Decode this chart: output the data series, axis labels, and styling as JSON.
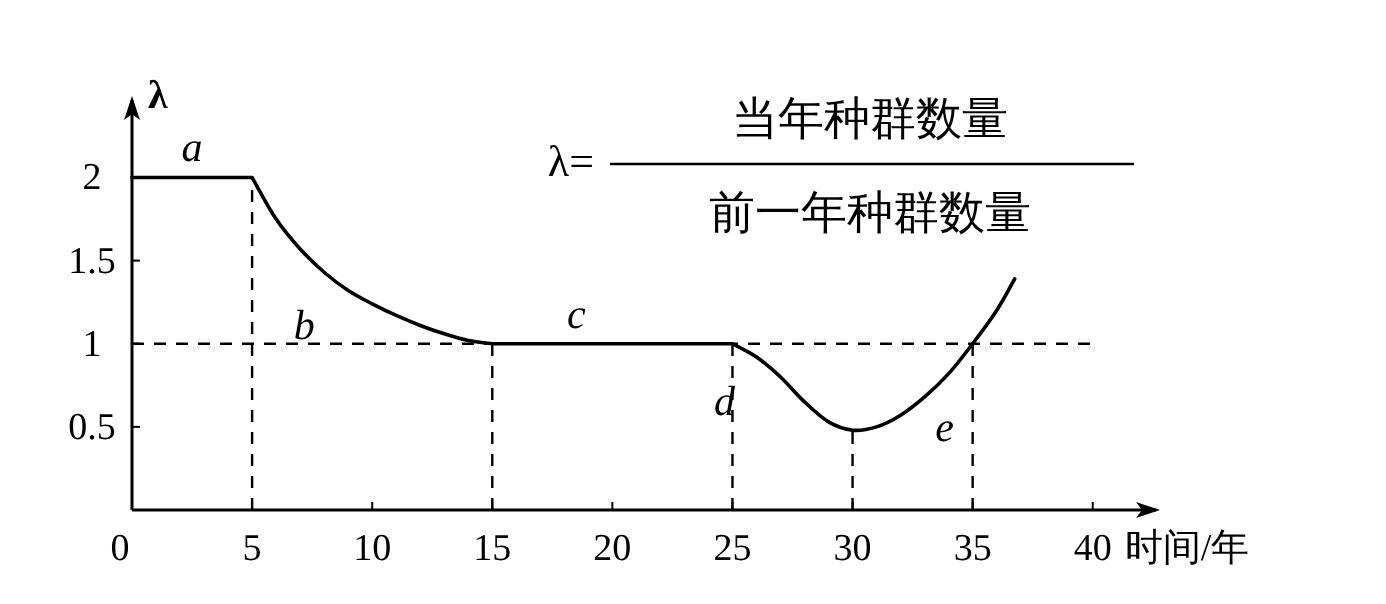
{
  "chart_data": {
    "type": "line",
    "xlabel": "时间/年",
    "ylabel": "λ",
    "x": [
      0,
      5,
      6,
      7,
      8,
      9,
      10,
      11,
      12,
      13,
      14,
      15,
      25,
      26,
      27,
      28,
      29,
      30,
      31,
      32,
      33,
      34,
      35,
      36,
      36.75
    ],
    "series": [
      {
        "color": "#000000",
        "line_style": "solid",
        "values": [
          2,
          2,
          1.75,
          1.57,
          1.43,
          1.32,
          1.24,
          1.17,
          1.11,
          1.06,
          1.02,
          1,
          1,
          0.92,
          0.8,
          0.65,
          0.53,
          0.48,
          0.5,
          0.57,
          0.68,
          0.82,
          1,
          1.2,
          1.39
        ]
      }
    ],
    "xlim": [
      0,
      42.8
    ],
    "ylim": [
      0,
      2.49
    ],
    "xticks": [
      0,
      5,
      10,
      15,
      20,
      25,
      30,
      35,
      40
    ],
    "yticks": [
      0.5,
      1,
      1.5,
      2
    ],
    "ref_lines": [
      {
        "axis": "x",
        "value": 5,
        "line_style": "dashed"
      },
      {
        "axis": "x",
        "value": 15,
        "line_style": "dashed"
      },
      {
        "axis": "x",
        "value": 25,
        "line_style": "dashed"
      },
      {
        "axis": "x",
        "value": 30,
        "line_style": "dashed"
      },
      {
        "axis": "x",
        "value": 35,
        "line_style": "dashed"
      },
      {
        "axis": "y",
        "value": 1,
        "line_style": "dashed"
      }
    ],
    "annotations": [
      {
        "text": "a",
        "x": 2.5,
        "y": 2
      },
      {
        "text": "b",
        "x": 9,
        "y": 1.32
      },
      {
        "text": "c",
        "x": 18.5,
        "y": 1
      },
      {
        "text": "d",
        "x": 26.5,
        "y": 0.86
      },
      {
        "text": "e",
        "x": 33,
        "y": 0.68
      },
      "λ=",
      "当年种群数量",
      "前一年种群数量"
    ]
  }
}
